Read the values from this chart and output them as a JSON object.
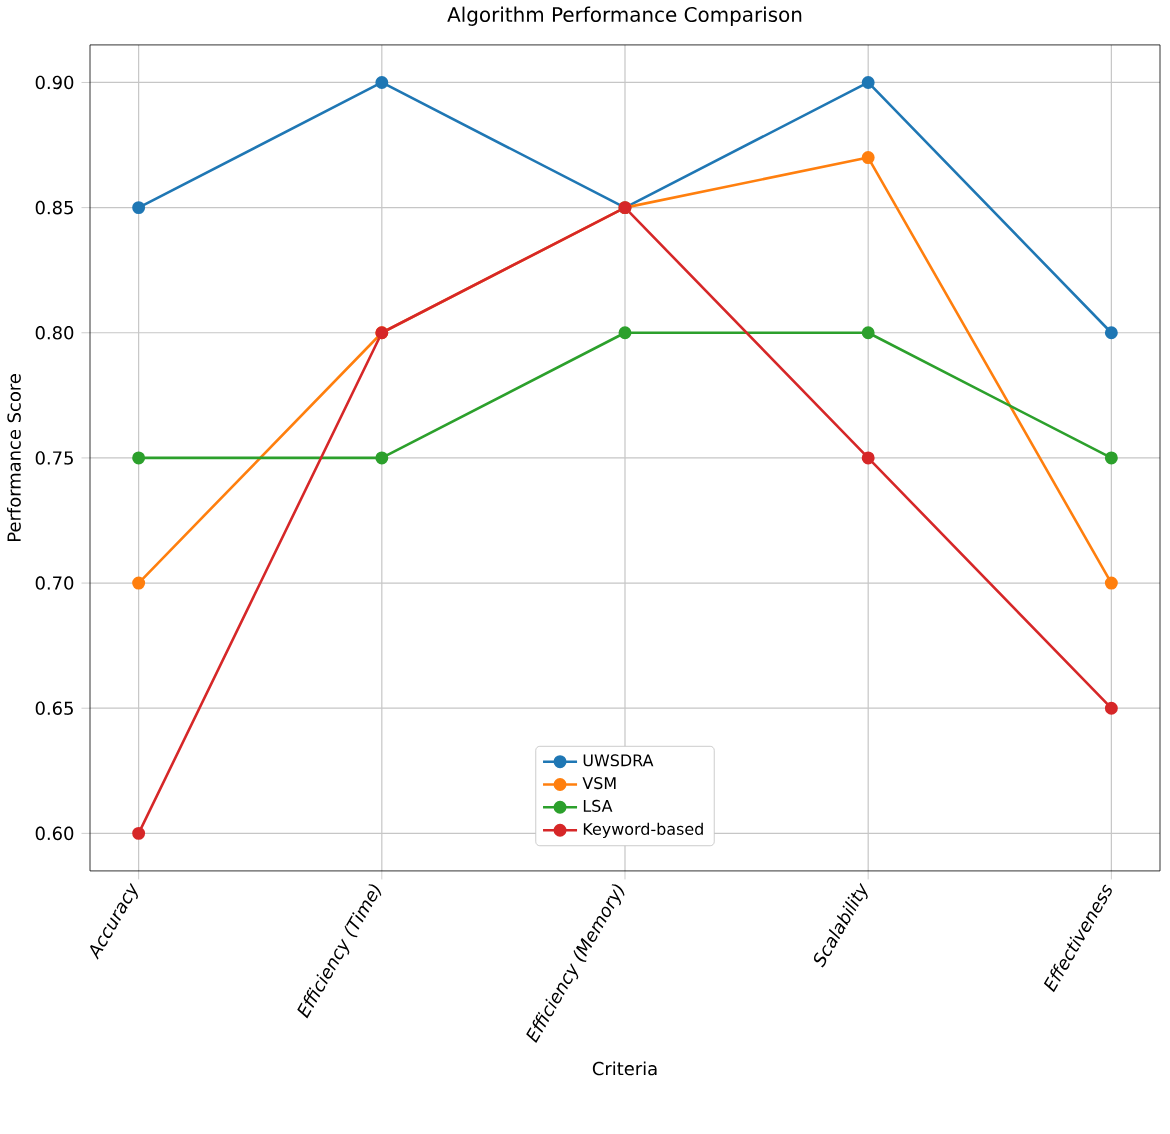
{
  "chart_data": {
    "type": "line",
    "title": "Algorithm Performance Comparison",
    "xlabel": "Criteria",
    "ylabel": "Performance Score",
    "categories": [
      "Accuracy",
      "Efficiency (Time)",
      "Efficiency (Memory)",
      "Scalability",
      "Effectiveness"
    ],
    "series": [
      {
        "name": "UWSDRA",
        "color": "#1f77b4",
        "values": [
          0.85,
          0.9,
          0.85,
          0.9,
          0.8
        ]
      },
      {
        "name": "VSM",
        "color": "#ff7f0e",
        "values": [
          0.7,
          0.8,
          0.85,
          0.87,
          0.7
        ]
      },
      {
        "name": "LSA",
        "color": "#2ca02c",
        "values": [
          0.75,
          0.75,
          0.8,
          0.8,
          0.75
        ]
      },
      {
        "name": "Keyword-based",
        "color": "#d62728",
        "values": [
          0.6,
          0.8,
          0.85,
          0.75,
          0.65
        ]
      }
    ],
    "ylim": [
      0.585,
      0.915
    ],
    "yticks": [
      {
        "value": 0.6,
        "label": "0.60"
      },
      {
        "value": 0.65,
        "label": "0.65"
      },
      {
        "value": 0.7,
        "label": "0.70"
      },
      {
        "value": 0.75,
        "label": "0.75"
      },
      {
        "value": 0.8,
        "label": "0.80"
      },
      {
        "value": 0.85,
        "label": "0.85"
      },
      {
        "value": 0.9,
        "label": "0.90"
      }
    ],
    "grid": true,
    "legend": "bottom",
    "marker": "circle",
    "line_style": "solid"
  }
}
